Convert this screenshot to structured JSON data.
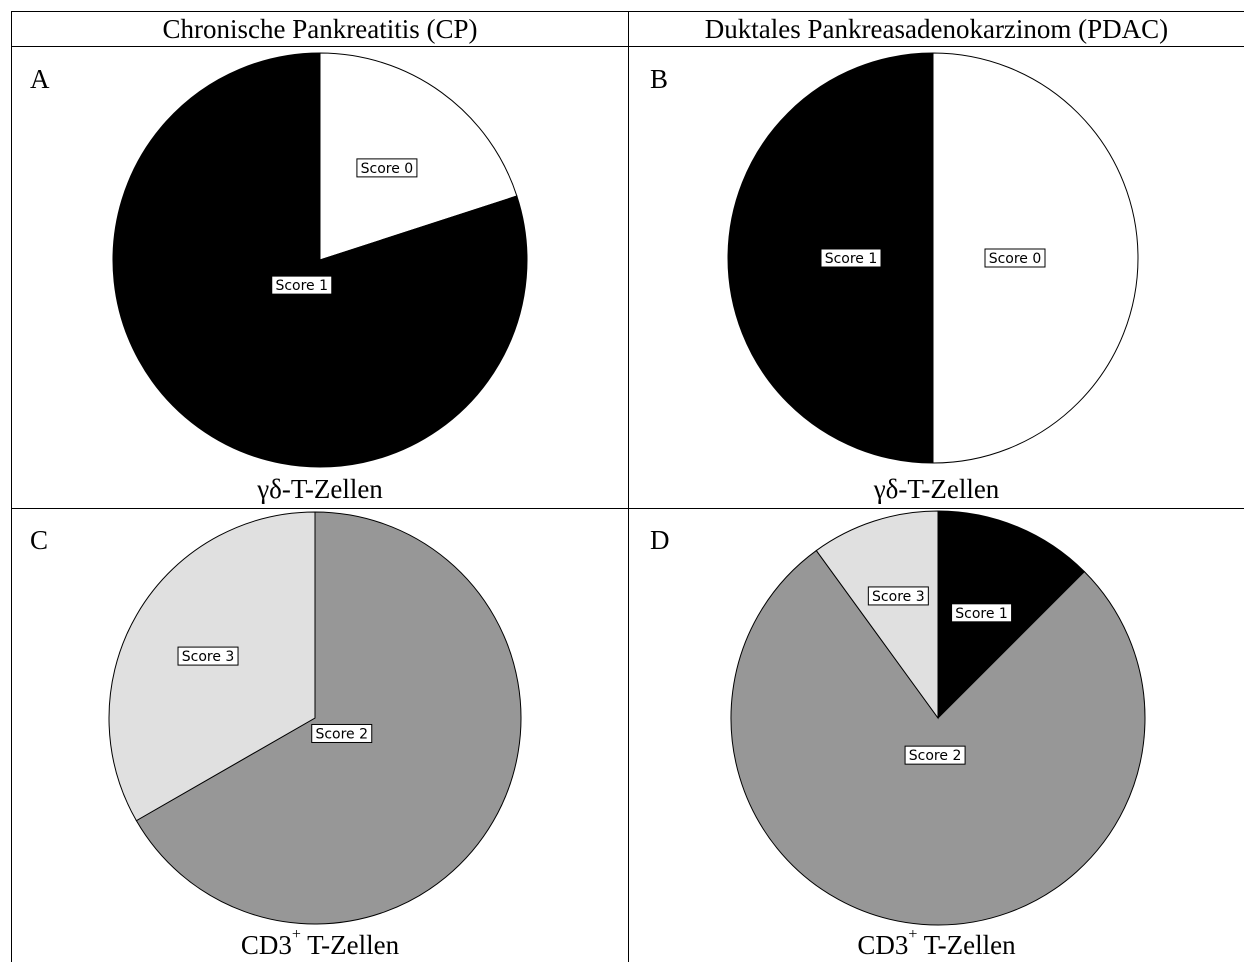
{
  "headers": [
    "Chronische Pankreatitis (CP)",
    "Duktales Pankreasadenokarzinom (PDAC)"
  ],
  "panels": [
    {
      "letter": "A",
      "caption": "γδ-T-Zellen",
      "caption_sup": "",
      "caption_rest": "",
      "chart_data": {
        "type": "pie",
        "slices": [
          {
            "label": "Score 0",
            "value": 20,
            "color": "#ffffff"
          },
          {
            "label": "Score 1",
            "value": 80,
            "color": "#000000"
          }
        ]
      }
    },
    {
      "letter": "B",
      "caption": "γδ-T-Zellen",
      "caption_sup": "",
      "caption_rest": "",
      "chart_data": {
        "type": "pie",
        "slices": [
          {
            "label": "Score 0",
            "value": 50,
            "color": "#ffffff"
          },
          {
            "label": "Score 1",
            "value": 50,
            "color": "#000000"
          }
        ]
      }
    },
    {
      "letter": "C",
      "caption": "CD3",
      "caption_sup": "+",
      "caption_rest": " T-Zellen",
      "chart_data": {
        "type": "pie",
        "slices": [
          {
            "label": "Score 2",
            "value": 66.7,
            "color": "#979797"
          },
          {
            "label": "Score 3",
            "value": 33.3,
            "color": "#e0e0e0"
          }
        ]
      }
    },
    {
      "letter": "D",
      "caption": "CD3",
      "caption_sup": "+",
      "caption_rest": " T-Zellen",
      "chart_data": {
        "type": "pie",
        "slices": [
          {
            "label": "Score 1",
            "value": 12.5,
            "color": "#000000"
          },
          {
            "label": "Score 2",
            "value": 77.5,
            "color": "#979797"
          },
          {
            "label": "Score 3",
            "value": 10,
            "color": "#e0e0e0"
          }
        ]
      }
    }
  ]
}
